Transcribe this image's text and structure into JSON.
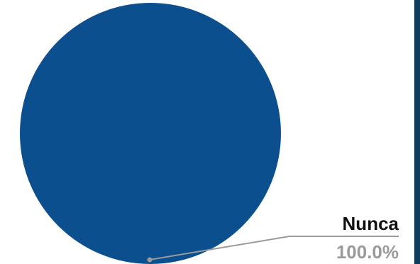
{
  "chart_data": {
    "type": "pie",
    "categories": [
      "Nunca"
    ],
    "values": [
      100.0
    ],
    "value_labels": [
      "100.0%"
    ],
    "colors": [
      "#0b4f8f"
    ],
    "title": "",
    "legend": "none"
  },
  "theme": {
    "accent_bar": "#0f3d5c",
    "leader_line": "#9a9a9a",
    "label_color": "#111111",
    "value_color": "#9a9a9a"
  }
}
